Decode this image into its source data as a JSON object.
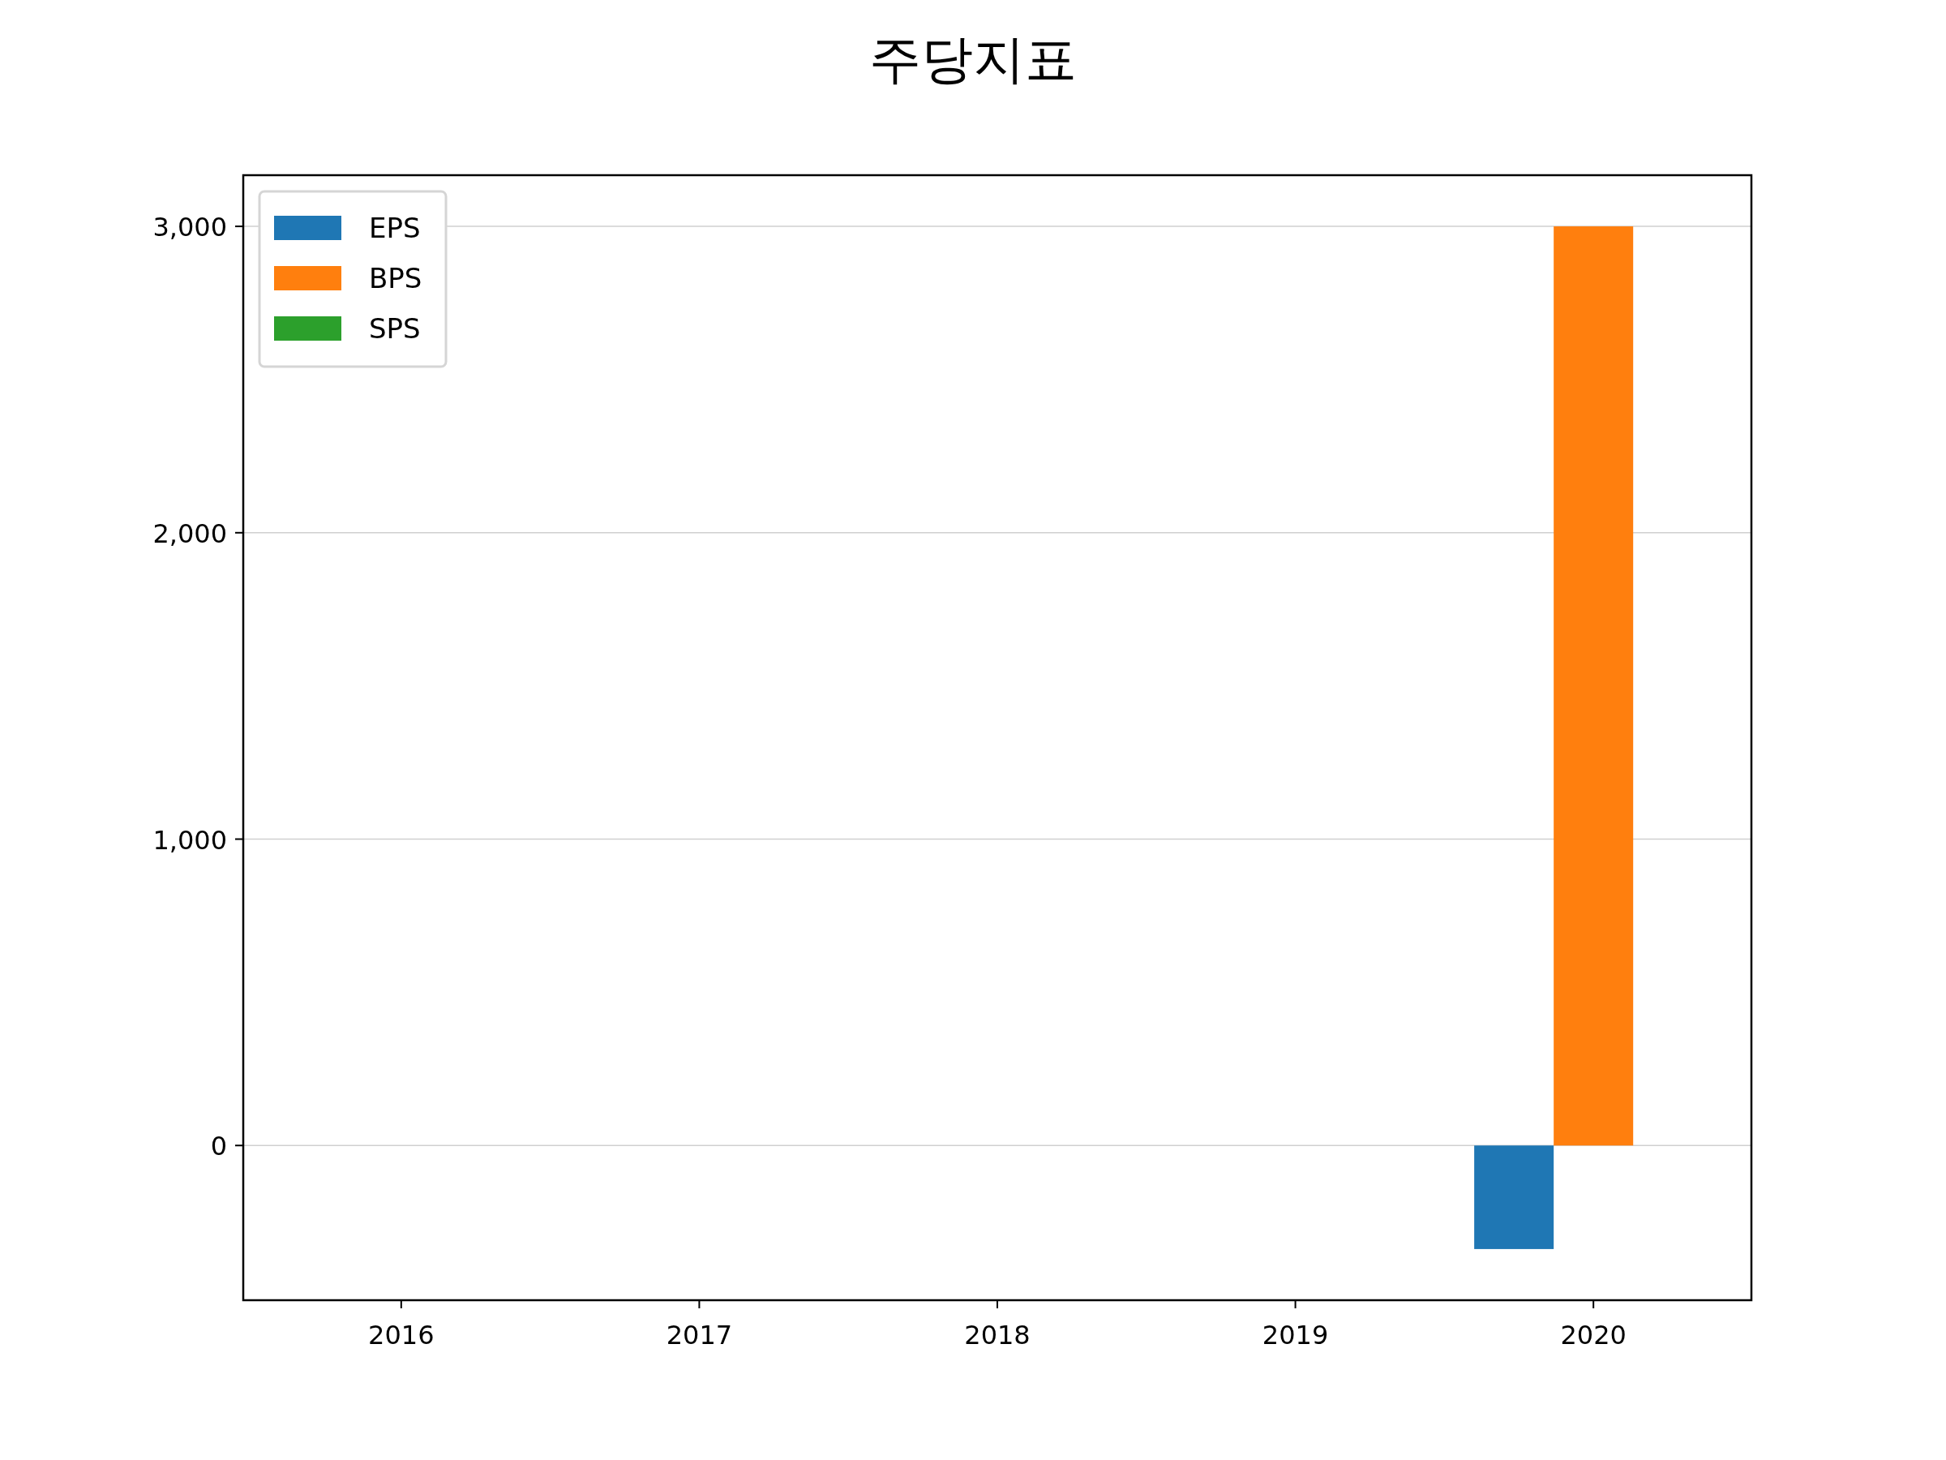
{
  "chart_data": {
    "type": "bar",
    "title": "주당지표",
    "categories": [
      "2016",
      "2017",
      "2018",
      "2019",
      "2020"
    ],
    "series": [
      {
        "name": "EPS",
        "color": "#1f77b4",
        "values": [
          null,
          null,
          null,
          null,
          -338
        ]
      },
      {
        "name": "BPS",
        "color": "#ff7f0e",
        "values": [
          null,
          null,
          null,
          null,
          3000
        ]
      },
      {
        "name": "SPS",
        "color": "#2ca02c",
        "values": [
          null,
          null,
          null,
          null,
          null
        ]
      }
    ],
    "ylim": [
      -505,
      3167
    ],
    "yticks": [
      0,
      {
        "value": 1000,
        "label": "1,000"
      },
      {
        "value": 2000,
        "label": "2,000"
      },
      {
        "value": 3000,
        "label": "3,000"
      }
    ],
    "grid": "y",
    "legend": "top left"
  }
}
